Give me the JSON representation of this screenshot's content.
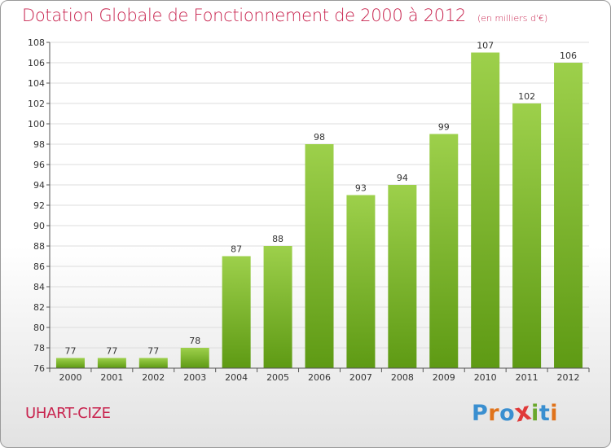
{
  "title": "Dotation Globale de Fonctionnement de 2000 à 2012",
  "subtitle": "(en milliers d'€)",
  "commune": "UHART-CIZE",
  "logo": {
    "letters": [
      "P",
      "r",
      "o",
      "x",
      "i",
      "t",
      "i"
    ],
    "colors": [
      "#3a8fd0",
      "#e0731b",
      "#3a8fd0",
      "#e03a3a",
      "#6aa82c",
      "#3a8fd0",
      "#e0731b"
    ]
  },
  "colors": {
    "title": "#c8234e",
    "bar_top": "#9dd04b",
    "bar_bottom": "#5e9a14",
    "grid": "#dddddd"
  },
  "chart_data": {
    "type": "bar",
    "title": "Dotation Globale de Fonctionnement de 2000 à 2012",
    "subtitle": "(en milliers d'€)",
    "categories": [
      "2000",
      "2001",
      "2002",
      "2003",
      "2004",
      "2005",
      "2006",
      "2007",
      "2008",
      "2009",
      "2010",
      "2011",
      "2012"
    ],
    "values": [
      77,
      77,
      77,
      78,
      87,
      88,
      98,
      93,
      94,
      99,
      107,
      102,
      106
    ],
    "ylim": [
      76,
      108
    ],
    "yticks": [
      76,
      78,
      80,
      82,
      84,
      86,
      88,
      90,
      92,
      94,
      96,
      98,
      100,
      102,
      104,
      106,
      108
    ],
    "grid": true,
    "data_labels": true
  }
}
